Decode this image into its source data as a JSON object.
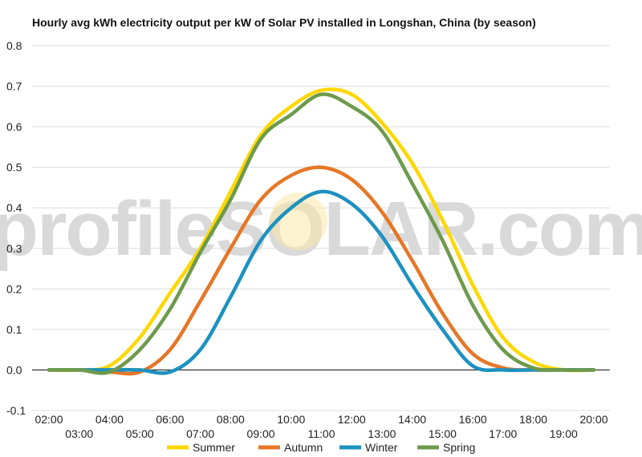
{
  "chart_data": {
    "type": "line",
    "title": "Hourly avg kWh electricity output per kW of Solar PV installed in Longshan, China (by season)",
    "watermark": "profileSOLAR.com",
    "xlabel": "",
    "ylabel": "",
    "ylim": [
      -0.1,
      0.8
    ],
    "yticks": [
      "-0.1",
      "0.0",
      "0.1",
      "0.2",
      "0.3",
      "0.4",
      "0.5",
      "0.6",
      "0.7",
      "0.8"
    ],
    "x": [
      "02:00",
      "03:00",
      "04:00",
      "05:00",
      "06:00",
      "07:00",
      "08:00",
      "09:00",
      "10:00",
      "11:00",
      "12:00",
      "13:00",
      "14:00",
      "15:00",
      "16:00",
      "17:00",
      "18:00",
      "19:00",
      "20:00"
    ],
    "grid": true,
    "legend": "bottom",
    "series": [
      {
        "name": "Summer",
        "color": "#ffd700",
        "values": [
          0,
          0,
          0.01,
          0.08,
          0.19,
          0.3,
          0.44,
          0.58,
          0.65,
          0.69,
          0.68,
          0.61,
          0.51,
          0.37,
          0.21,
          0.08,
          0.02,
          0,
          0
        ]
      },
      {
        "name": "Autumn",
        "color": "#e57727",
        "values": [
          0,
          0,
          -0.005,
          -0.005,
          0.05,
          0.17,
          0.3,
          0.42,
          0.48,
          0.5,
          0.47,
          0.39,
          0.27,
          0.14,
          0.04,
          0.005,
          0,
          0,
          0
        ]
      },
      {
        "name": "Winter",
        "color": "#1d91c0",
        "values": [
          0,
          0,
          0,
          0,
          -0.005,
          0.05,
          0.18,
          0.32,
          0.4,
          0.44,
          0.41,
          0.33,
          0.21,
          0.1,
          0.01,
          0,
          0,
          0,
          0
        ]
      },
      {
        "name": "Spring",
        "color": "#6d9a4c",
        "values": [
          0,
          0,
          -0.005,
          0.05,
          0.15,
          0.29,
          0.42,
          0.57,
          0.63,
          0.68,
          0.65,
          0.59,
          0.46,
          0.32,
          0.16,
          0.05,
          0.005,
          0,
          0
        ]
      }
    ]
  }
}
